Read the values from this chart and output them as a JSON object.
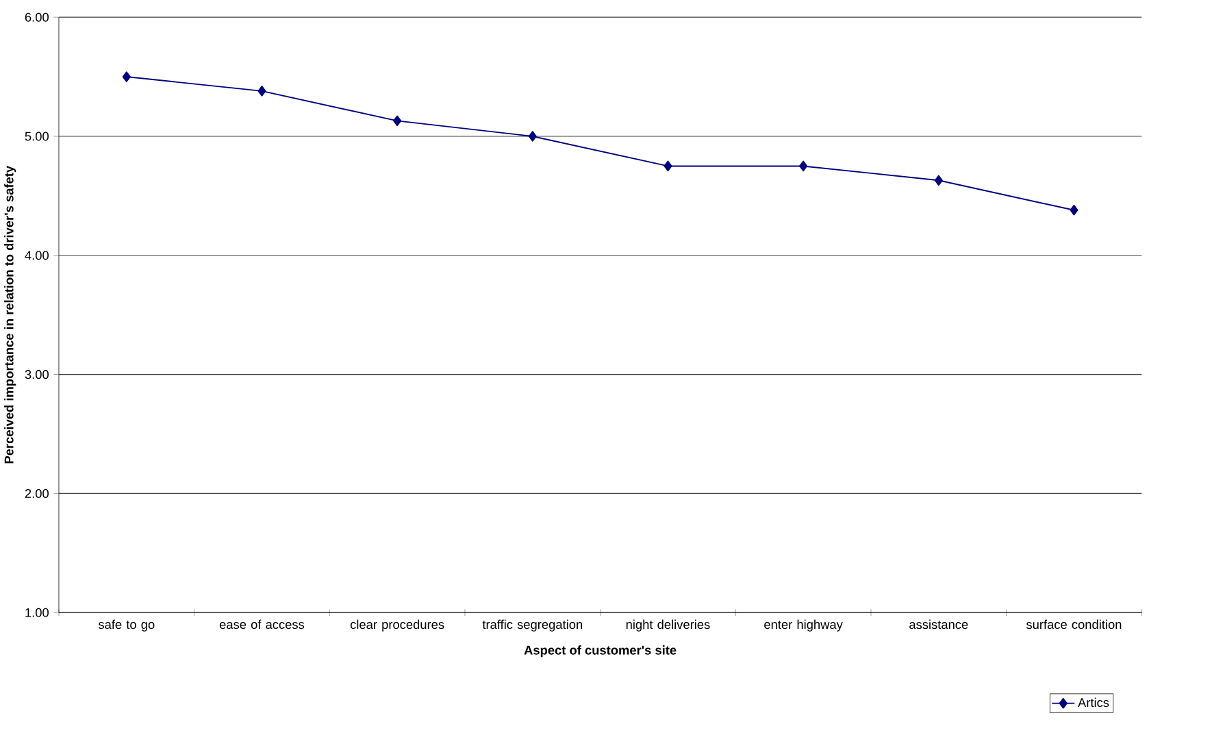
{
  "chart_data": {
    "type": "line",
    "xlabel": "Aspect of customer's site",
    "ylabel": "Perceived importance in relation to driver's safety",
    "categories": [
      "safe to go",
      "ease of access",
      "clear procedures",
      "traffic segregation",
      "night deliveries",
      "enter highway",
      "assistance",
      "surface condition"
    ],
    "series": [
      {
        "name": "Artics",
        "color": "#000080",
        "values": [
          5.5,
          5.38,
          5.13,
          5.0,
          4.75,
          4.75,
          4.63,
          4.38
        ]
      }
    ],
    "ylim": [
      1,
      6
    ],
    "yticks": [
      {
        "value": 1,
        "label": "1.00"
      },
      {
        "value": 2,
        "label": "2.00"
      },
      {
        "value": 3,
        "label": "3.00"
      },
      {
        "value": 4,
        "label": "4.00"
      },
      {
        "value": 5,
        "label": "5.00"
      },
      {
        "value": 6,
        "label": "6.00"
      }
    ],
    "grid": "y",
    "legend": "bottom right",
    "marker": "diamond",
    "line_style": "solid"
  }
}
